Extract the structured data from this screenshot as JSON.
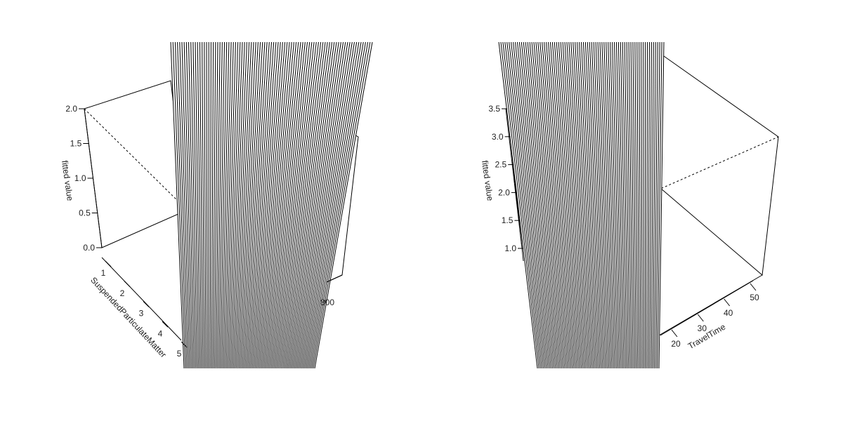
{
  "chart_data": [
    {
      "type": "surface",
      "zlabel": "fitted value",
      "zticks": [
        "0.0",
        "0.5",
        "1.0",
        "1.5",
        "2.0"
      ],
      "xlabel": "SuspendedParticulateMatter",
      "xticks": [
        "1",
        "2",
        "3",
        "4",
        "5"
      ],
      "yticks": [
        "800"
      ],
      "grid": false
    },
    {
      "type": "surface",
      "zlabel": "fitted value",
      "zticks": [
        "1.0",
        "1.5",
        "2.0",
        "2.5",
        "3.0",
        "3.5"
      ],
      "xlabel": "TravelTime",
      "xticks": [
        "20",
        "30",
        "40",
        "50"
      ],
      "grid": false
    }
  ]
}
